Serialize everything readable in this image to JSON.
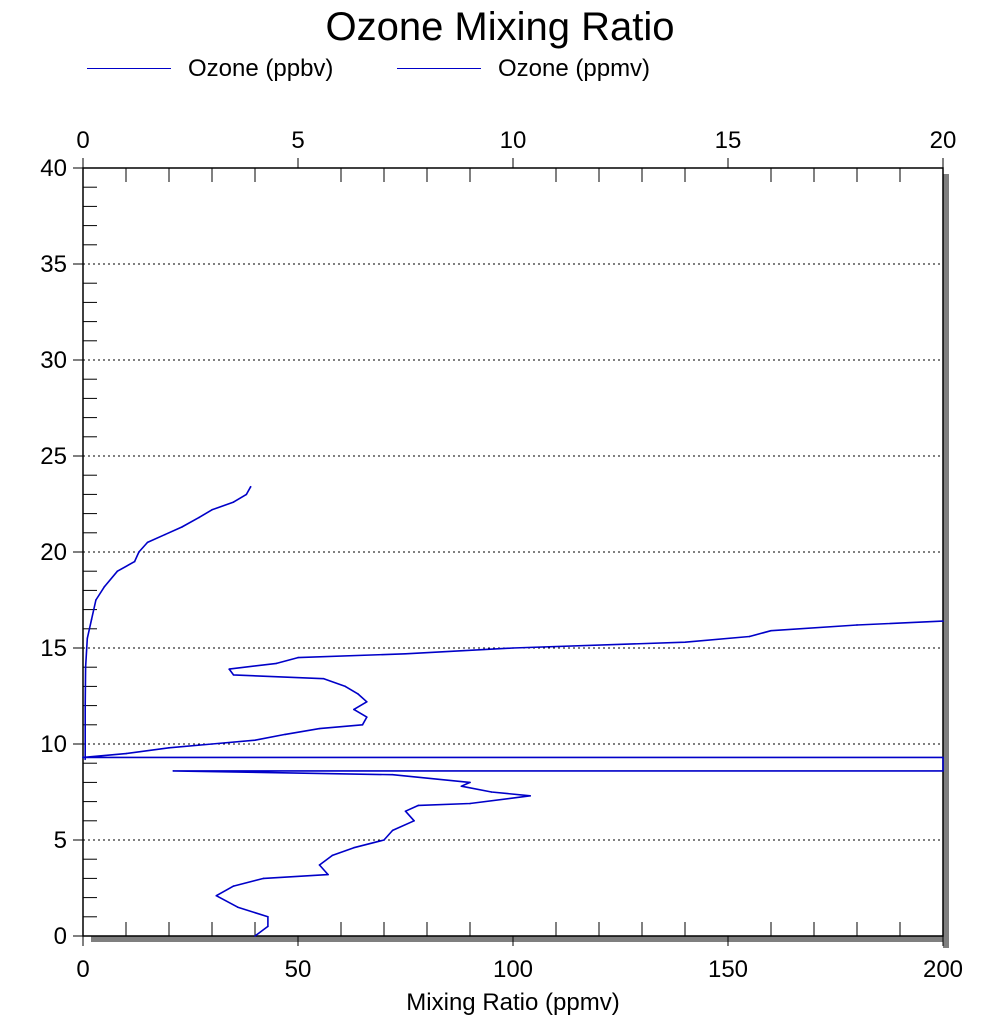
{
  "chart_data": {
    "type": "line",
    "title": "Ozone Mixing Ratio",
    "xlabel": "Mixing Ratio (ppmv)",
    "ylabel": "",
    "xlim_bottom": [
      0,
      200
    ],
    "xlim_top": [
      0,
      20
    ],
    "ylim": [
      0,
      40
    ],
    "x_ticks_bottom": [
      "0",
      "50",
      "100",
      "150",
      "200"
    ],
    "x_ticks_top": [
      "0",
      "5",
      "10",
      "15",
      "20"
    ],
    "y_ticks": [
      "0",
      "5",
      "10",
      "15",
      "20",
      "25",
      "30",
      "35",
      "40"
    ],
    "grid": "horizontal dotted",
    "legend_position": "top-left",
    "series": [
      {
        "name": "Ozone (ppbv)",
        "axis": "bottom",
        "color": "#0000c8",
        "points": [
          [
            40,
            0
          ],
          [
            43,
            0.5
          ],
          [
            43,
            1
          ],
          [
            36,
            1.5
          ],
          [
            31,
            2.1
          ],
          [
            35,
            2.6
          ],
          [
            42,
            3.0
          ],
          [
            57,
            3.2
          ],
          [
            55,
            3.7
          ],
          [
            58,
            4.2
          ],
          [
            63,
            4.6
          ],
          [
            70,
            5.0
          ],
          [
            72,
            5.5
          ],
          [
            77,
            6.0
          ],
          [
            75,
            6.5
          ],
          [
            78,
            6.8
          ],
          [
            90,
            6.9
          ],
          [
            104,
            7.3
          ],
          [
            95,
            7.5
          ],
          [
            88,
            7.8
          ],
          [
            90,
            8.0
          ],
          [
            72,
            8.4
          ],
          [
            21,
            8.6
          ],
          [
            200,
            8.6
          ],
          [
            200,
            9.3
          ],
          [
            0,
            9.3
          ],
          [
            10,
            9.5
          ],
          [
            20,
            9.8
          ],
          [
            30,
            10.0
          ],
          [
            40,
            10.2
          ],
          [
            47,
            10.5
          ],
          [
            55,
            10.8
          ],
          [
            65,
            11.0
          ],
          [
            66,
            11.4
          ],
          [
            63,
            11.8
          ],
          [
            66,
            12.2
          ],
          [
            64,
            12.6
          ],
          [
            61,
            13.0
          ],
          [
            56,
            13.4
          ],
          [
            35,
            13.6
          ],
          [
            34,
            13.9
          ],
          [
            45,
            14.2
          ],
          [
            50,
            14.5
          ],
          [
            75,
            14.7
          ],
          [
            100,
            15.0
          ],
          [
            140,
            15.3
          ],
          [
            155,
            15.6
          ],
          [
            160,
            15.9
          ],
          [
            180,
            16.2
          ],
          [
            200,
            16.4
          ]
        ]
      },
      {
        "name": "Ozone (ppmv)",
        "axis": "top",
        "color": "#0000c8",
        "points": [
          [
            0.05,
            9.2
          ],
          [
            0.05,
            12.0
          ],
          [
            0.06,
            14.0
          ],
          [
            0.1,
            15.5
          ],
          [
            0.2,
            16.5
          ],
          [
            0.3,
            17.5
          ],
          [
            0.5,
            18.2
          ],
          [
            0.8,
            19.0
          ],
          [
            1.2,
            19.5
          ],
          [
            1.3,
            20.0
          ],
          [
            1.5,
            20.5
          ],
          [
            1.9,
            20.9
          ],
          [
            2.3,
            21.3
          ],
          [
            2.7,
            21.8
          ],
          [
            3.0,
            22.2
          ],
          [
            3.5,
            22.6
          ],
          [
            3.8,
            23.0
          ],
          [
            3.9,
            23.4
          ]
        ]
      }
    ]
  }
}
